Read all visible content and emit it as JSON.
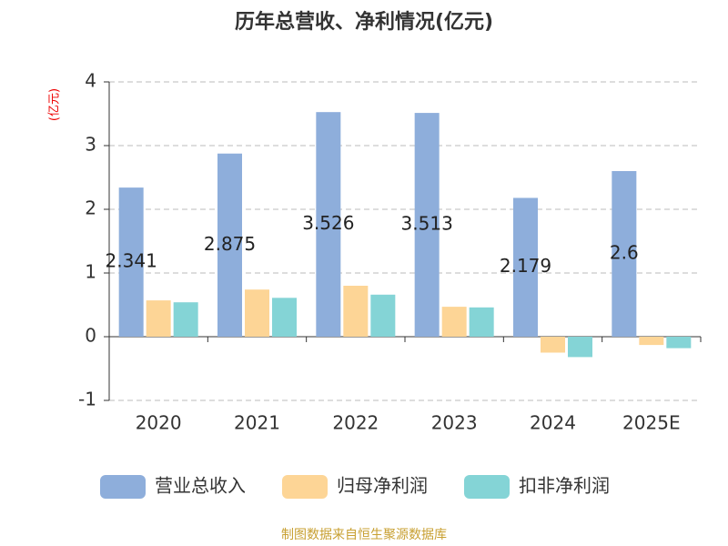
{
  "chart_data": {
    "type": "bar",
    "title": "历年总营收、净利情况(亿元)",
    "y_label": "(亿元)",
    "categories": [
      "2020",
      "2021",
      "2022",
      "2023",
      "2024",
      "2025E"
    ],
    "series": [
      {
        "name": "营业总收入",
        "color": "#8eaedb",
        "values": [
          2.341,
          2.875,
          3.526,
          3.513,
          2.179,
          2.6
        ],
        "data_labels": true
      },
      {
        "name": "归母净利润",
        "color": "#fdd596",
        "values": [
          0.57,
          0.74,
          0.8,
          0.47,
          -0.25,
          -0.13
        ]
      },
      {
        "name": "扣非净利润",
        "color": "#84d4d6",
        "values": [
          0.54,
          0.61,
          0.66,
          0.46,
          -0.32,
          -0.18
        ]
      }
    ],
    "ylim": [
      -1,
      4
    ],
    "yticks": [
      -1,
      0,
      1,
      2,
      3,
      4
    ],
    "grid": true,
    "source": "制图数据来自恒生聚源数据库"
  }
}
